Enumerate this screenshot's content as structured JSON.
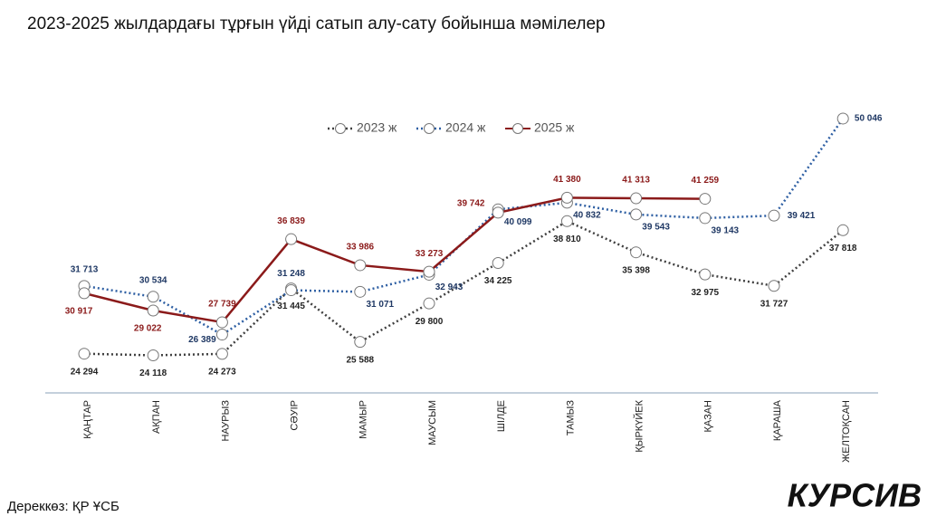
{
  "chart_data": {
    "type": "line",
    "title": "2023-2025 жылдардағы  тұрғын үйді сатып алу-сату бойынша мәмілелер",
    "source": "Дереккөз: ҚР ҰСБ",
    "logo": "КУРСИВ",
    "categories": [
      "ҚАҢТАР",
      "АҚПАН",
      "НАУРЫЗ",
      "СӘУІР",
      "МАМЫР",
      "МАУСЫМ",
      "ШІЛДЕ",
      "ТАМЫЗ",
      "ҚЫРКҮЙЕК",
      "ҚАЗАН",
      "ҚАРАША",
      "ЖЕЛТОҚСАН"
    ],
    "ylim": [
      20000,
      55000
    ],
    "legend": "top",
    "series": [
      {
        "name": "2023 ж",
        "color": "#404040",
        "dash": "dotted",
        "values": [
          24294,
          24118,
          24273,
          31445,
          25588,
          29800,
          34225,
          38810,
          35398,
          32975,
          31727,
          37818
        ],
        "value_labels": [
          "24 294",
          "24 118",
          "24 273",
          "31 445",
          "25 588",
          "29 800",
          "34 225",
          "38 810",
          "35 398",
          "32 975",
          "31 727",
          "37 818"
        ]
      },
      {
        "name": "2024 ж",
        "color": "#2e5fa3",
        "dash": "dotted",
        "values": [
          31713,
          30534,
          26389,
          31248,
          31071,
          32943,
          40099,
          40832,
          39543,
          39143,
          39421,
          50046
        ],
        "value_labels": [
          "31 713",
          "30 534",
          "26 389",
          "31 248",
          "31 071",
          "32 943",
          "40 099",
          "40 832",
          "39 543",
          "39 143",
          "39 421",
          "50 046"
        ]
      },
      {
        "name": "2025 ж",
        "color": "#8b1a1a",
        "dash": "solid",
        "values": [
          30917,
          29022,
          27739,
          36839,
          33986,
          33273,
          39742,
          41380,
          41313,
          41259,
          null,
          null
        ],
        "value_labels": [
          "30 917",
          "29 022",
          "27 739",
          "36 839",
          "33 986",
          "33 273",
          "39 742",
          "41 380",
          "41 313",
          "41 259",
          null,
          null
        ]
      }
    ]
  }
}
